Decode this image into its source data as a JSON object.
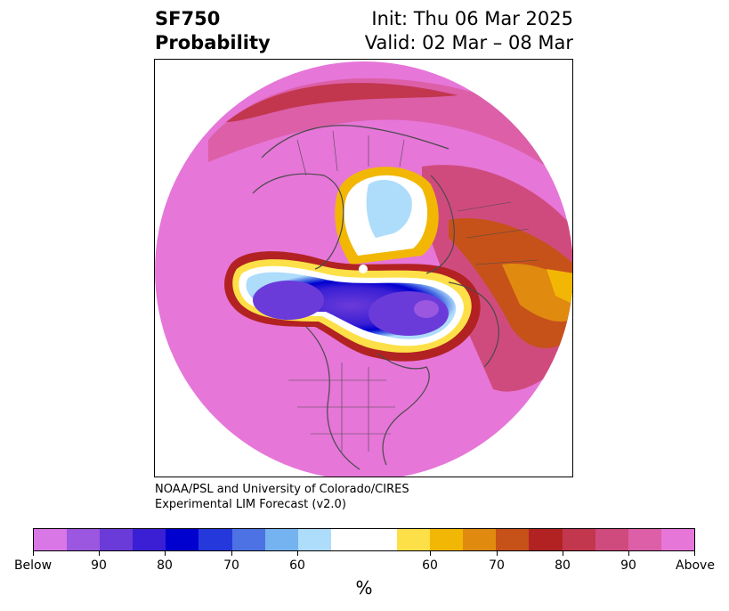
{
  "title": {
    "variable": "SF750",
    "subtitle": "Probability",
    "init": "Init: Thu 06 Mar 2025",
    "valid": "Valid: 02 Mar – 08 Mar"
  },
  "credit": {
    "line1": "NOAA/PSL and University of Colorado/CIRES",
    "line2": "Experimental LIM Forecast (v2.0)"
  },
  "colorbar": {
    "unit": "%",
    "colors": [
      "#d977e6",
      "#9b57e0",
      "#6b3bd9",
      "#3a1fd4",
      "#0000cf",
      "#2438dc",
      "#4c72e4",
      "#74b3ef",
      "#aedcfb",
      "#ffffff",
      "#fde047",
      "#f2b705",
      "#e08a10",
      "#c6521a",
      "#b22222",
      "#c2364e",
      "#d04b7d",
      "#dc5fa8",
      "#e676d8"
    ],
    "labels": [
      "Below",
      "90",
      "80",
      "70",
      "60",
      "60",
      "70",
      "80",
      "90",
      "Above"
    ]
  },
  "map": {
    "projection": "north-polar-stereographic",
    "regions": [
      {
        "name": "background-above-prob",
        "color": "#e676d8"
      },
      {
        "name": "pacific-below-anomaly",
        "color": "#3a1fd4"
      },
      {
        "name": "canada-below-anomaly",
        "color": "#6b3bd9"
      },
      {
        "name": "arctic-near-normal",
        "color": "#aedcfb"
      },
      {
        "name": "europe-above-anomaly",
        "color": "#e08a10"
      }
    ]
  }
}
